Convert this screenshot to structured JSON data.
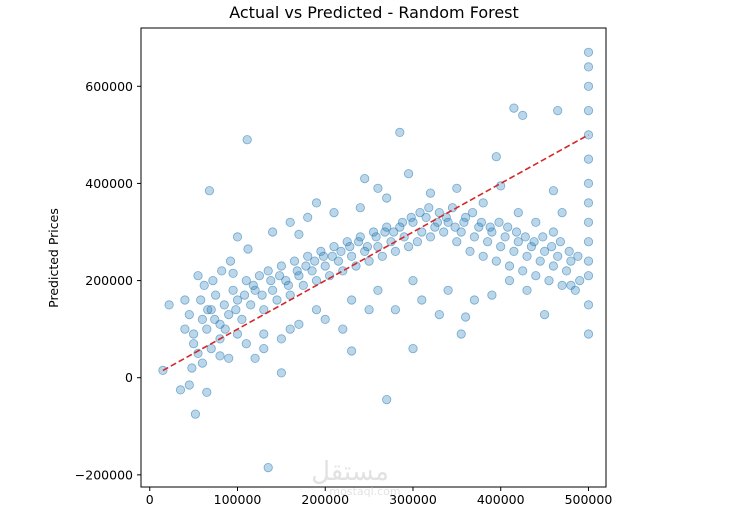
{
  "chart_data": {
    "type": "scatter",
    "title": "Actual vs Predicted - Random Forest",
    "xlabel": "",
    "ylabel": "Predicted Prices",
    "xlim": [
      -10000,
      520000
    ],
    "ylim": [
      -225000,
      720000
    ],
    "x_ticks": [
      0,
      100000,
      200000,
      300000,
      400000,
      500000
    ],
    "y_ticks": [
      -200000,
      0,
      200000,
      400000,
      600000
    ],
    "x_tick_labels": [
      "0",
      "100000",
      "200000",
      "300000",
      "400000",
      "500000"
    ],
    "y_tick_labels": [
      "−200000",
      "0",
      "200000",
      "400000",
      "600000"
    ],
    "point_color": "#1f77b4",
    "point_alpha": 0.3,
    "reference_line": {
      "from": [
        15000,
        15000
      ],
      "to": [
        500000,
        500000
      ],
      "color": "#d62728",
      "style": "dashed"
    },
    "grid": false,
    "points": [
      [
        15000,
        15000
      ],
      [
        22000,
        150000
      ],
      [
        35000,
        -25000
      ],
      [
        40000,
        160000
      ],
      [
        45000,
        -15000
      ],
      [
        48000,
        20000
      ],
      [
        52000,
        -75000
      ],
      [
        55000,
        210000
      ],
      [
        65000,
        -30000
      ],
      [
        68000,
        385000
      ],
      [
        80000,
        45000
      ],
      [
        95000,
        215000
      ],
      [
        100000,
        290000
      ],
      [
        111000,
        490000
      ],
      [
        112000,
        265000
      ],
      [
        135000,
        -185000
      ],
      [
        150000,
        10000
      ],
      [
        170000,
        295000
      ],
      [
        190000,
        360000
      ],
      [
        230000,
        55000
      ],
      [
        245000,
        410000
      ],
      [
        260000,
        390000
      ],
      [
        270000,
        -45000
      ],
      [
        285000,
        505000
      ],
      [
        295000,
        420000
      ],
      [
        300000,
        60000
      ],
      [
        355000,
        90000
      ],
      [
        360000,
        125000
      ],
      [
        395000,
        455000
      ],
      [
        400000,
        395000
      ],
      [
        415000,
        555000
      ],
      [
        425000,
        540000
      ],
      [
        450000,
        130000
      ],
      [
        460000,
        385000
      ],
      [
        465000,
        550000
      ],
      [
        480000,
        190000
      ],
      [
        490000,
        200000
      ],
      [
        60000,
        120000
      ],
      [
        65000,
        100000
      ],
      [
        70000,
        140000
      ],
      [
        75000,
        170000
      ],
      [
        80000,
        110000
      ],
      [
        85000,
        150000
      ],
      [
        90000,
        130000
      ],
      [
        95000,
        180000
      ],
      [
        100000,
        160000
      ],
      [
        105000,
        120000
      ],
      [
        110000,
        200000
      ],
      [
        115000,
        150000
      ],
      [
        120000,
        180000
      ],
      [
        125000,
        210000
      ],
      [
        130000,
        140000
      ],
      [
        135000,
        220000
      ],
      [
        140000,
        180000
      ],
      [
        145000,
        160000
      ],
      [
        150000,
        230000
      ],
      [
        155000,
        200000
      ],
      [
        160000,
        170000
      ],
      [
        165000,
        240000
      ],
      [
        170000,
        210000
      ],
      [
        175000,
        190000
      ],
      [
        180000,
        250000
      ],
      [
        185000,
        220000
      ],
      [
        190000,
        200000
      ],
      [
        195000,
        260000
      ],
      [
        200000,
        230000
      ],
      [
        205000,
        210000
      ],
      [
        210000,
        270000
      ],
      [
        215000,
        240000
      ],
      [
        220000,
        220000
      ],
      [
        225000,
        280000
      ],
      [
        230000,
        250000
      ],
      [
        235000,
        230000
      ],
      [
        240000,
        290000
      ],
      [
        245000,
        260000
      ],
      [
        250000,
        240000
      ],
      [
        255000,
        300000
      ],
      [
        260000,
        270000
      ],
      [
        265000,
        250000
      ],
      [
        270000,
        310000
      ],
      [
        275000,
        280000
      ],
      [
        280000,
        260000
      ],
      [
        285000,
        310000
      ],
      [
        290000,
        290000
      ],
      [
        295000,
        270000
      ],
      [
        300000,
        320000
      ],
      [
        305000,
        280000
      ],
      [
        310000,
        300000
      ],
      [
        315000,
        330000
      ],
      [
        320000,
        290000
      ],
      [
        325000,
        310000
      ],
      [
        330000,
        340000
      ],
      [
        335000,
        300000
      ],
      [
        340000,
        320000
      ],
      [
        345000,
        350000
      ],
      [
        350000,
        280000
      ],
      [
        355000,
        300000
      ],
      [
        360000,
        330000
      ],
      [
        365000,
        260000
      ],
      [
        370000,
        290000
      ],
      [
        375000,
        310000
      ],
      [
        380000,
        250000
      ],
      [
        385000,
        280000
      ],
      [
        390000,
        300000
      ],
      [
        395000,
        240000
      ],
      [
        400000,
        270000
      ],
      [
        405000,
        290000
      ],
      [
        410000,
        230000
      ],
      [
        415000,
        260000
      ],
      [
        420000,
        280000
      ],
      [
        425000,
        220000
      ],
      [
        430000,
        250000
      ],
      [
        435000,
        270000
      ],
      [
        440000,
        210000
      ],
      [
        445000,
        240000
      ],
      [
        450000,
        260000
      ],
      [
        455000,
        200000
      ],
      [
        460000,
        230000
      ],
      [
        465000,
        250000
      ],
      [
        470000,
        190000
      ],
      [
        475000,
        220000
      ],
      [
        480000,
        240000
      ],
      [
        485000,
        180000
      ],
      [
        500000,
        670000
      ],
      [
        500000,
        640000
      ],
      [
        500000,
        600000
      ],
      [
        500000,
        550000
      ],
      [
        500000,
        500000
      ],
      [
        500000,
        450000
      ],
      [
        500000,
        400000
      ],
      [
        500000,
        360000
      ],
      [
        500000,
        320000
      ],
      [
        500000,
        280000
      ],
      [
        500000,
        240000
      ],
      [
        500000,
        210000
      ],
      [
        500000,
        150000
      ],
      [
        500000,
        90000
      ],
      [
        50000,
        70000
      ],
      [
        55000,
        50000
      ],
      [
        60000,
        30000
      ],
      [
        70000,
        60000
      ],
      [
        90000,
        40000
      ],
      [
        110000,
        70000
      ],
      [
        120000,
        40000
      ],
      [
        130000,
        90000
      ],
      [
        150000,
        80000
      ],
      [
        170000,
        110000
      ],
      [
        200000,
        120000
      ],
      [
        220000,
        100000
      ],
      [
        250000,
        140000
      ],
      [
        280000,
        140000
      ],
      [
        310000,
        160000
      ],
      [
        340000,
        180000
      ],
      [
        40000,
        100000
      ],
      [
        45000,
        130000
      ],
      [
        50000,
        90000
      ],
      [
        58000,
        160000
      ],
      [
        62000,
        190000
      ],
      [
        72000,
        200000
      ],
      [
        82000,
        220000
      ],
      [
        92000,
        240000
      ],
      [
        140000,
        300000
      ],
      [
        160000,
        320000
      ],
      [
        180000,
        330000
      ],
      [
        210000,
        340000
      ],
      [
        240000,
        350000
      ],
      [
        270000,
        370000
      ],
      [
        320000,
        380000
      ],
      [
        350000,
        390000
      ],
      [
        380000,
        360000
      ],
      [
        420000,
        340000
      ],
      [
        440000,
        320000
      ],
      [
        460000,
        300000
      ],
      [
        470000,
        340000
      ],
      [
        430000,
        180000
      ],
      [
        410000,
        200000
      ],
      [
        390000,
        170000
      ],
      [
        370000,
        160000
      ],
      [
        330000,
        130000
      ],
      [
        300000,
        200000
      ],
      [
        260000,
        180000
      ],
      [
        230000,
        160000
      ],
      [
        190000,
        140000
      ],
      [
        160000,
        100000
      ],
      [
        130000,
        60000
      ],
      [
        100000,
        90000
      ],
      [
        80000,
        80000
      ],
      [
        66000,
        140000
      ],
      [
        74000,
        120000
      ],
      [
        86000,
        100000
      ],
      [
        98000,
        140000
      ],
      [
        108000,
        170000
      ],
      [
        118000,
        190000
      ],
      [
        128000,
        170000
      ],
      [
        138000,
        200000
      ],
      [
        148000,
        210000
      ],
      [
        158000,
        190000
      ],
      [
        168000,
        220000
      ],
      [
        178000,
        230000
      ],
      [
        188000,
        240000
      ],
      [
        198000,
        250000
      ],
      [
        208000,
        250000
      ],
      [
        218000,
        260000
      ],
      [
        228000,
        270000
      ],
      [
        238000,
        280000
      ],
      [
        248000,
        270000
      ],
      [
        258000,
        290000
      ],
      [
        268000,
        300000
      ],
      [
        278000,
        300000
      ],
      [
        288000,
        320000
      ],
      [
        298000,
        330000
      ],
      [
        308000,
        340000
      ],
      [
        318000,
        350000
      ],
      [
        328000,
        320000
      ],
      [
        338000,
        330000
      ],
      [
        348000,
        310000
      ],
      [
        358000,
        320000
      ],
      [
        368000,
        340000
      ],
      [
        378000,
        320000
      ],
      [
        388000,
        310000
      ],
      [
        398000,
        320000
      ],
      [
        408000,
        310000
      ],
      [
        418000,
        300000
      ],
      [
        428000,
        290000
      ],
      [
        438000,
        280000
      ],
      [
        448000,
        290000
      ],
      [
        458000,
        270000
      ],
      [
        468000,
        280000
      ],
      [
        478000,
        260000
      ],
      [
        488000,
        250000
      ]
    ]
  },
  "watermark": {
    "text": "مستقل",
    "subtext": "mostaql.com"
  }
}
